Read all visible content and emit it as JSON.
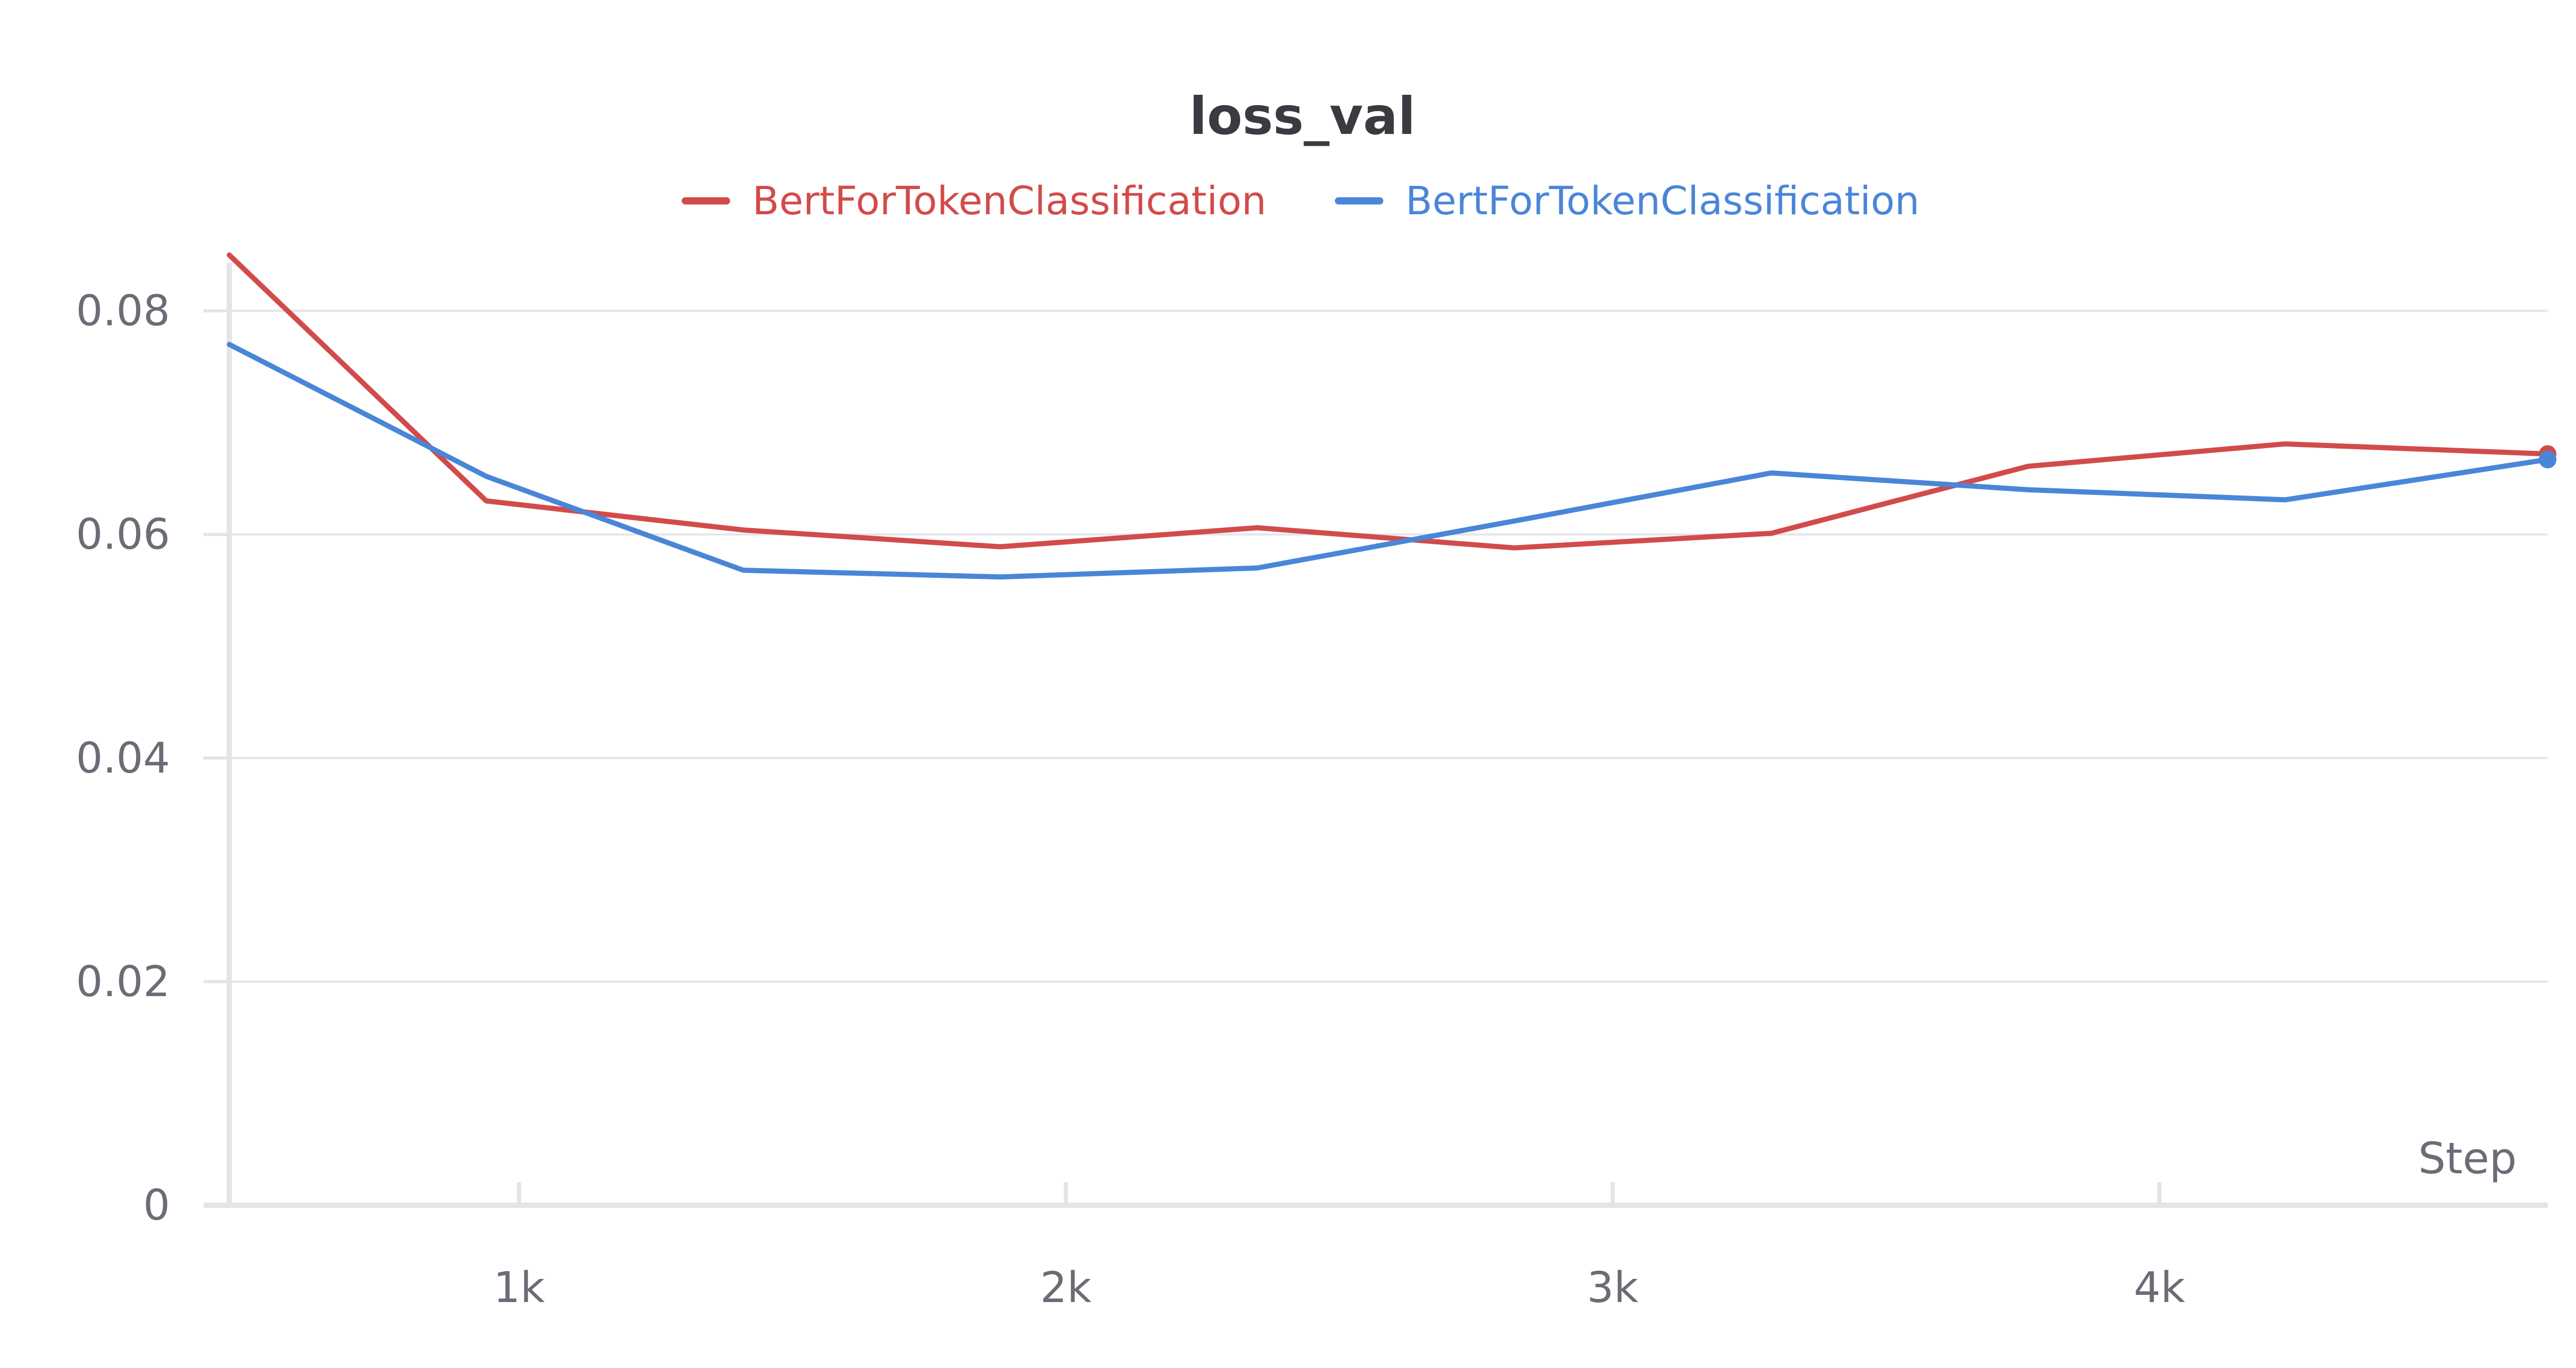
{
  "chart_data": {
    "type": "line",
    "title": "loss_val",
    "xlabel": "Step",
    "ylabel": "",
    "xlim": [
      470,
      4710
    ],
    "ylim": [
      0,
      0.085
    ],
    "x_ticks": [
      {
        "value": 1000,
        "label": "1k"
      },
      {
        "value": 2000,
        "label": "2k"
      },
      {
        "value": 3000,
        "label": "3k"
      },
      {
        "value": 4000,
        "label": "4k"
      }
    ],
    "y_ticks": [
      {
        "value": 0,
        "label": "0"
      },
      {
        "value": 0.02,
        "label": "0.02"
      },
      {
        "value": 0.04,
        "label": "0.04"
      },
      {
        "value": 0.06,
        "label": "0.06"
      },
      {
        "value": 0.08,
        "label": "0.08"
      }
    ],
    "grid": true,
    "legend_position": "top-center",
    "series": [
      {
        "name": "BertForTokenClassification",
        "color": "#d24b4b",
        "x": [
          470,
          940,
          1410,
          1880,
          2350,
          2820,
          3290,
          3760,
          4230,
          4710
        ],
        "y": [
          0.085,
          0.063,
          0.0604,
          0.0589,
          0.0606,
          0.0588,
          0.0601,
          0.0661,
          0.0681,
          0.0672
        ]
      },
      {
        "name": "BertForTokenClassification",
        "color": "#4a86d8",
        "x": [
          470,
          940,
          1410,
          1880,
          2350,
          2820,
          3290,
          3760,
          4230,
          4710
        ],
        "y": [
          0.077,
          0.0652,
          0.0568,
          0.0562,
          0.057,
          0.0612,
          0.0655,
          0.064,
          0.0631,
          0.0667
        ]
      }
    ]
  }
}
